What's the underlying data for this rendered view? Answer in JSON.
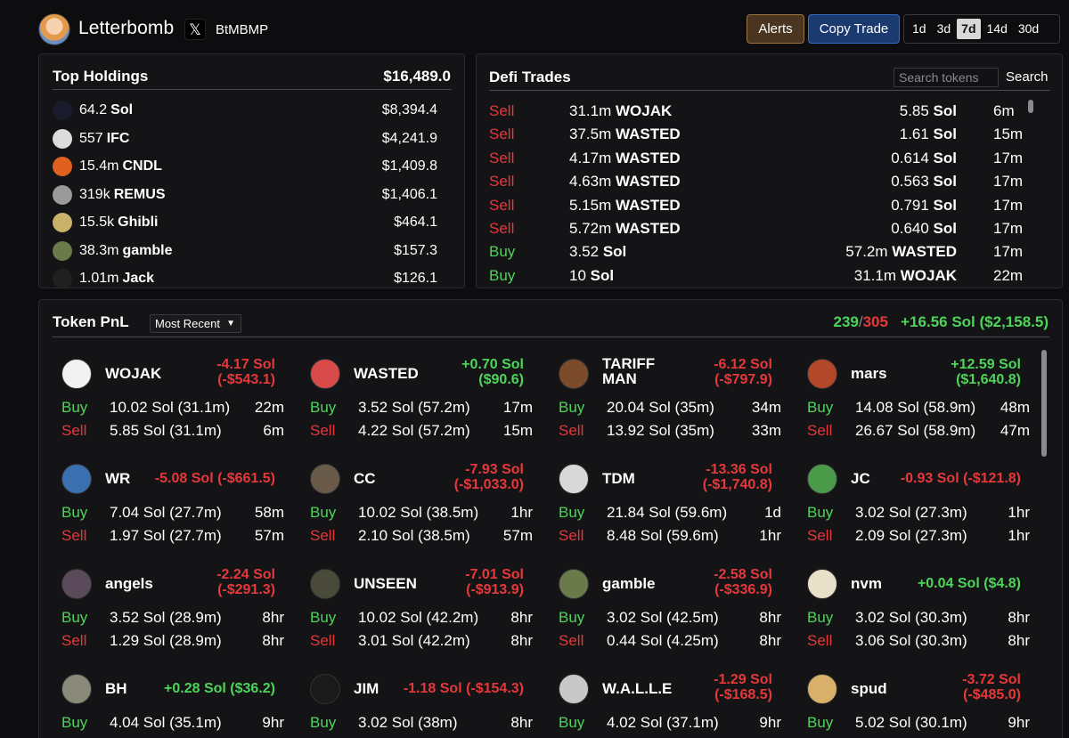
{
  "header": {
    "app_title": "Letterbomb",
    "x_icon": "x-logo-icon",
    "handle": "BtMBMP",
    "alerts_label": "Alerts",
    "copy_trade_label": "Copy Trade",
    "periods": [
      "1d",
      "3d",
      "7d",
      "14d",
      "30d"
    ],
    "active_period": "7d"
  },
  "holdings": {
    "title": "Top Holdings",
    "total": "$16,489.0",
    "items": [
      {
        "amount": "64.2",
        "symbol": "Sol",
        "value": "$8,394.4",
        "icon": "solana-icon",
        "color": "#1b1b2e"
      },
      {
        "amount": "557",
        "symbol": "IFC",
        "value": "$4,241.9",
        "icon": "ifc-token-icon",
        "color": "#dcdcdc"
      },
      {
        "amount": "15.4m",
        "symbol": "CNDL",
        "value": "$1,409.8",
        "icon": "cndl-token-icon",
        "color": "#e0601f"
      },
      {
        "amount": "319k",
        "symbol": "REMUS",
        "value": "$1,406.1",
        "icon": "remus-token-icon",
        "color": "#9a9a9a"
      },
      {
        "amount": "15.5k",
        "symbol": "Ghibli",
        "value": "$464.1",
        "icon": "ghibli-token-icon",
        "color": "#c9b16a"
      },
      {
        "amount": "38.3m",
        "symbol": "gamble",
        "value": "$157.3",
        "icon": "gamble-token-icon",
        "color": "#6a7a4a"
      },
      {
        "amount": "1.01m",
        "symbol": "Jack",
        "value": "$126.1",
        "icon": "token-icon",
        "color": "#202020"
      }
    ]
  },
  "trades": {
    "title": "Defi Trades",
    "search_placeholder": "Search tokens",
    "search_label": "Search",
    "rows": [
      {
        "side": "Sell",
        "in_amt": "31.1m",
        "in_sym": "WOJAK",
        "out_amt": "5.85",
        "out_sym": "Sol",
        "time": "6m"
      },
      {
        "side": "Sell",
        "in_amt": "37.5m",
        "in_sym": "WASTED",
        "out_amt": "1.61",
        "out_sym": "Sol",
        "time": "15m"
      },
      {
        "side": "Sell",
        "in_amt": "4.17m",
        "in_sym": "WASTED",
        "out_amt": "0.614",
        "out_sym": "Sol",
        "time": "17m"
      },
      {
        "side": "Sell",
        "in_amt": "4.63m",
        "in_sym": "WASTED",
        "out_amt": "0.563",
        "out_sym": "Sol",
        "time": "17m"
      },
      {
        "side": "Sell",
        "in_amt": "5.15m",
        "in_sym": "WASTED",
        "out_amt": "0.791",
        "out_sym": "Sol",
        "time": "17m"
      },
      {
        "side": "Sell",
        "in_amt": "5.72m",
        "in_sym": "WASTED",
        "out_amt": "0.640",
        "out_sym": "Sol",
        "time": "17m"
      },
      {
        "side": "Buy",
        "in_amt": "3.52",
        "in_sym": "Sol",
        "out_amt": "57.2m",
        "out_sym": "WASTED",
        "time": "17m"
      },
      {
        "side": "Buy",
        "in_amt": "10",
        "in_sym": "Sol",
        "out_amt": "31.1m",
        "out_sym": "WOJAK",
        "time": "22m"
      }
    ]
  },
  "pnl": {
    "title": "Token PnL",
    "sort_label": "Most Recent",
    "wins": "239",
    "slash": "/",
    "total": "305",
    "summary": "+16.56 Sol ($2,158.5)",
    "cards": [
      {
        "name": "WOJAK",
        "pnl_sol": "-4.17 Sol",
        "pnl_usd": "(-$543.1)",
        "positive": false,
        "icon": "wojak-token-icon",
        "color": "#f2f2f2",
        "buy_amt": "10.02 Sol (31.1m)",
        "buy_time": "22m",
        "sell_amt": "5.85 Sol (31.1m)",
        "sell_time": "6m"
      },
      {
        "name": "WASTED",
        "pnl_sol": "+0.70 Sol",
        "pnl_usd": "($90.6)",
        "positive": true,
        "icon": "wasted-token-icon",
        "color": "#d94a4a",
        "buy_amt": "3.52 Sol (57.2m)",
        "buy_time": "17m",
        "sell_amt": "4.22 Sol (57.2m)",
        "sell_time": "15m"
      },
      {
        "name": "TARIFF MAN",
        "pnl_sol": "-6.12 Sol",
        "pnl_usd": "(-$797.9)",
        "positive": false,
        "icon": "tariff-man-token-icon",
        "color": "#7a4a2a",
        "buy_amt": "20.04 Sol (35m)",
        "buy_time": "34m",
        "sell_amt": "13.92 Sol (35m)",
        "sell_time": "33m"
      },
      {
        "name": "mars",
        "pnl_sol": "+12.59 Sol",
        "pnl_usd": "($1,640.8)",
        "positive": true,
        "icon": "mars-token-icon",
        "color": "#b2472a",
        "buy_amt": "14.08 Sol (58.9m)",
        "buy_time": "48m",
        "sell_amt": "26.67 Sol (58.9m)",
        "sell_time": "47m"
      },
      {
        "name": "WR",
        "pnl_sol": "-5.08 Sol (-$661.5)",
        "pnl_usd": "",
        "positive": false,
        "icon": "wr-token-icon",
        "color": "#3a6fb0",
        "buy_amt": "7.04 Sol (27.7m)",
        "buy_time": "58m",
        "sell_amt": "1.97 Sol (27.7m)",
        "sell_time": "57m"
      },
      {
        "name": "CC",
        "pnl_sol": "-7.93 Sol",
        "pnl_usd": "(-$1,033.0)",
        "positive": false,
        "icon": "cc-token-icon",
        "color": "#6a5a4a",
        "buy_amt": "10.02 Sol (38.5m)",
        "buy_time": "1hr",
        "sell_amt": "2.10 Sol (38.5m)",
        "sell_time": "57m"
      },
      {
        "name": "TDM",
        "pnl_sol": "-13.36 Sol",
        "pnl_usd": "(-$1,740.8)",
        "positive": false,
        "icon": "image-placeholder-icon",
        "color": "#d8d8d8",
        "buy_amt": "21.84 Sol (59.6m)",
        "buy_time": "1d",
        "sell_amt": "8.48 Sol (59.6m)",
        "sell_time": "1hr"
      },
      {
        "name": "JC",
        "pnl_sol": "-0.93 Sol (-$121.8)",
        "pnl_usd": "",
        "positive": false,
        "icon": "jc-token-icon",
        "color": "#4a9a4a",
        "buy_amt": "3.02 Sol (27.3m)",
        "buy_time": "1hr",
        "sell_amt": "2.09 Sol (27.3m)",
        "sell_time": "1hr"
      },
      {
        "name": "angels",
        "pnl_sol": "-2.24 Sol",
        "pnl_usd": "(-$291.3)",
        "positive": false,
        "icon": "angels-token-icon",
        "color": "#5a4a5a",
        "buy_amt": "3.52 Sol (28.9m)",
        "buy_time": "8hr",
        "sell_amt": "1.29 Sol (28.9m)",
        "sell_time": "8hr"
      },
      {
        "name": "UNSEEN",
        "pnl_sol": "-7.01 Sol",
        "pnl_usd": "(-$913.9)",
        "positive": false,
        "icon": "unseen-token-icon",
        "color": "#4a4a3a",
        "buy_amt": "10.02 Sol (42.2m)",
        "buy_time": "8hr",
        "sell_amt": "3.01 Sol (42.2m)",
        "sell_time": "8hr"
      },
      {
        "name": "gamble",
        "pnl_sol": "-2.58 Sol",
        "pnl_usd": "(-$336.9)",
        "positive": false,
        "icon": "gamble-token-icon",
        "color": "#6a7a4a",
        "buy_amt": "3.02 Sol (42.5m)",
        "buy_time": "8hr",
        "sell_amt": "0.44 Sol (4.25m)",
        "sell_time": "8hr"
      },
      {
        "name": "nvm",
        "pnl_sol": "+0.04 Sol ($4.8)",
        "pnl_usd": "",
        "positive": true,
        "icon": "nvm-token-icon",
        "color": "#e8e0c8",
        "buy_amt": "3.02 Sol (30.3m)",
        "buy_time": "8hr",
        "sell_amt": "3.06 Sol (30.3m)",
        "sell_time": "8hr"
      },
      {
        "name": "BH",
        "pnl_sol": "+0.28 Sol ($36.2)",
        "pnl_usd": "",
        "positive": true,
        "icon": "bh-token-icon",
        "color": "#8a8a7a",
        "buy_amt": "4.04 Sol (35.1m)",
        "buy_time": "9hr",
        "sell_amt": "",
        "sell_time": ""
      },
      {
        "name": "JIM",
        "pnl_sol": "-1.18 Sol (-$154.3)",
        "pnl_usd": "",
        "positive": false,
        "icon": "jim-token-icon",
        "color": "#1a1a1a",
        "buy_amt": "3.02 Sol (38m)",
        "buy_time": "8hr",
        "sell_amt": "",
        "sell_time": ""
      },
      {
        "name": "W.A.L.L.E",
        "pnl_sol": "-1.29 Sol",
        "pnl_usd": "(-$168.5)",
        "positive": false,
        "icon": "walle-token-icon",
        "color": "#c8c8c8",
        "buy_amt": "4.02 Sol (37.1m)",
        "buy_time": "9hr",
        "sell_amt": "",
        "sell_time": ""
      },
      {
        "name": "spud",
        "pnl_sol": "-3.72 Sol",
        "pnl_usd": "(-$485.0)",
        "positive": false,
        "icon": "spud-token-icon",
        "color": "#d8b06a",
        "buy_amt": "5.02 Sol (30.1m)",
        "buy_time": "9hr",
        "sell_amt": "",
        "sell_time": ""
      }
    ],
    "buy_label": "Buy",
    "sell_label": "Sell"
  },
  "colors": {
    "sell": "#e5383b",
    "buy": "#4ed45a",
    "background": "#0d0d0f",
    "panel": "#141416"
  }
}
